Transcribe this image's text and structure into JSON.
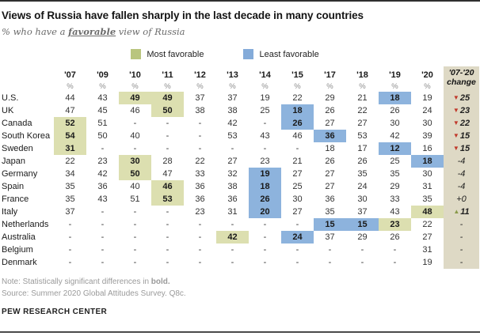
{
  "header": {
    "title": "Views of Russia have fallen sharply in the last decade in many countries",
    "subtitle_prefix": "% who have a ",
    "subtitle_emphasis": "favorable",
    "subtitle_suffix": " view of Russia"
  },
  "legend": {
    "items": [
      {
        "key": "most",
        "label": "Most favorable",
        "color": "#b9c57e"
      },
      {
        "key": "least",
        "label": "Least favorable",
        "color": "#84abd9"
      }
    ]
  },
  "chart_data": {
    "type": "table",
    "title": "Views of Russia have fallen sharply in the last decade in many countries",
    "subtitle": "% who have a favorable view of Russia",
    "unit": "%",
    "columns": [
      "'07",
      "'09",
      "'10",
      "'11",
      "'12",
      "'13",
      "'14",
      "'15",
      "'17",
      "'18",
      "'19",
      "'20"
    ],
    "change_header_line1": "'07-'20",
    "change_header_line2": "change",
    "highlight_meaning": {
      "most": "Most favorable",
      "least": "Least favorable"
    },
    "rows": [
      {
        "country": "U.S.",
        "values": [
          "44",
          "43",
          "49",
          "49",
          "37",
          "37",
          "19",
          "22",
          "29",
          "21",
          "18",
          "19"
        ],
        "highlights": {
          "2": "most",
          "3": "most",
          "10": "least"
        },
        "change": {
          "arrow": "down",
          "text": "25",
          "bold": true
        }
      },
      {
        "country": "UK",
        "values": [
          "47",
          "45",
          "46",
          "50",
          "38",
          "38",
          "25",
          "18",
          "26",
          "22",
          "26",
          "24"
        ],
        "highlights": {
          "3": "most",
          "7": "least"
        },
        "change": {
          "arrow": "down",
          "text": "23",
          "bold": true
        }
      },
      {
        "country": "Canada",
        "values": [
          "52",
          "51",
          "-",
          "-",
          "-",
          "42",
          "-",
          "26",
          "27",
          "27",
          "30",
          "30"
        ],
        "highlights": {
          "0": "most",
          "7": "least"
        },
        "change": {
          "arrow": "down",
          "text": "22",
          "bold": true
        }
      },
      {
        "country": "South Korea",
        "values": [
          "54",
          "50",
          "40",
          "-",
          "-",
          "53",
          "43",
          "46",
          "36",
          "53",
          "42",
          "39"
        ],
        "highlights": {
          "0": "most",
          "8": "least"
        },
        "change": {
          "arrow": "down",
          "text": "15",
          "bold": true
        }
      },
      {
        "country": "Sweden",
        "values": [
          "31",
          "-",
          "-",
          "-",
          "-",
          "-",
          "-",
          "-",
          "18",
          "17",
          "12",
          "16"
        ],
        "highlights": {
          "0": "most",
          "10": "least"
        },
        "change": {
          "arrow": "down",
          "text": "15",
          "bold": true
        }
      },
      {
        "country": "Japan",
        "values": [
          "22",
          "23",
          "30",
          "28",
          "22",
          "27",
          "23",
          "21",
          "26",
          "26",
          "25",
          "18"
        ],
        "highlights": {
          "2": "most",
          "11": "least"
        },
        "change": {
          "arrow": "",
          "text": "-4",
          "bold": false
        }
      },
      {
        "country": "Germany",
        "values": [
          "34",
          "42",
          "50",
          "47",
          "33",
          "32",
          "19",
          "27",
          "27",
          "35",
          "35",
          "30"
        ],
        "highlights": {
          "2": "most",
          "6": "least"
        },
        "change": {
          "arrow": "",
          "text": "-4",
          "bold": false
        }
      },
      {
        "country": "Spain",
        "values": [
          "35",
          "36",
          "40",
          "46",
          "36",
          "38",
          "18",
          "25",
          "27",
          "24",
          "29",
          "31"
        ],
        "highlights": {
          "3": "most",
          "6": "least"
        },
        "change": {
          "arrow": "",
          "text": "-4",
          "bold": false
        }
      },
      {
        "country": "France",
        "values": [
          "35",
          "43",
          "51",
          "53",
          "36",
          "36",
          "26",
          "30",
          "36",
          "30",
          "33",
          "35"
        ],
        "highlights": {
          "3": "most",
          "6": "least"
        },
        "change": {
          "arrow": "",
          "text": "+0",
          "bold": false
        }
      },
      {
        "country": "Italy",
        "values": [
          "37",
          "-",
          "-",
          "-",
          "23",
          "31",
          "20",
          "27",
          "35",
          "37",
          "43",
          "48"
        ],
        "highlights": {
          "6": "least",
          "11": "most"
        },
        "change": {
          "arrow": "up",
          "text": "11",
          "bold": true
        }
      },
      {
        "country": "Netherlands",
        "values": [
          "-",
          "-",
          "-",
          "-",
          "-",
          "-",
          "-",
          "-",
          "15",
          "15",
          "23",
          "22"
        ],
        "highlights": {
          "8": "least",
          "9": "least",
          "10": "most"
        },
        "change": {
          "arrow": "",
          "text": "-",
          "bold": false
        }
      },
      {
        "country": "Australia",
        "values": [
          "-",
          "-",
          "-",
          "-",
          "-",
          "42",
          "-",
          "24",
          "37",
          "29",
          "26",
          "27"
        ],
        "highlights": {
          "5": "most",
          "7": "least"
        },
        "change": {
          "arrow": "",
          "text": "-",
          "bold": false
        }
      },
      {
        "country": "Belgium",
        "values": [
          "-",
          "-",
          "-",
          "-",
          "-",
          "-",
          "-",
          "-",
          "-",
          "-",
          "-",
          "31"
        ],
        "highlights": {},
        "change": {
          "arrow": "",
          "text": "-",
          "bold": false
        }
      },
      {
        "country": "Denmark",
        "values": [
          "-",
          "-",
          "-",
          "-",
          "-",
          "-",
          "-",
          "-",
          "-",
          "-",
          "-",
          "19"
        ],
        "highlights": {},
        "change": {
          "arrow": "",
          "text": "-",
          "bold": false
        }
      }
    ]
  },
  "footnotes": {
    "note_prefix": "Note: Statistically significant differences in ",
    "note_bold": "bold.",
    "source": "Source: Summer 2020 Global Attitudes Survey. Q8c."
  },
  "footer": "PEW RESEARCH CENTER",
  "colors": {
    "most_favorable_cell": "#dcdfb0",
    "least_favorable_cell": "#8db3dd",
    "change_column_bg": "#ded9c5",
    "down_arrow": "#c0392b",
    "up_arrow": "#8a9a4a"
  }
}
